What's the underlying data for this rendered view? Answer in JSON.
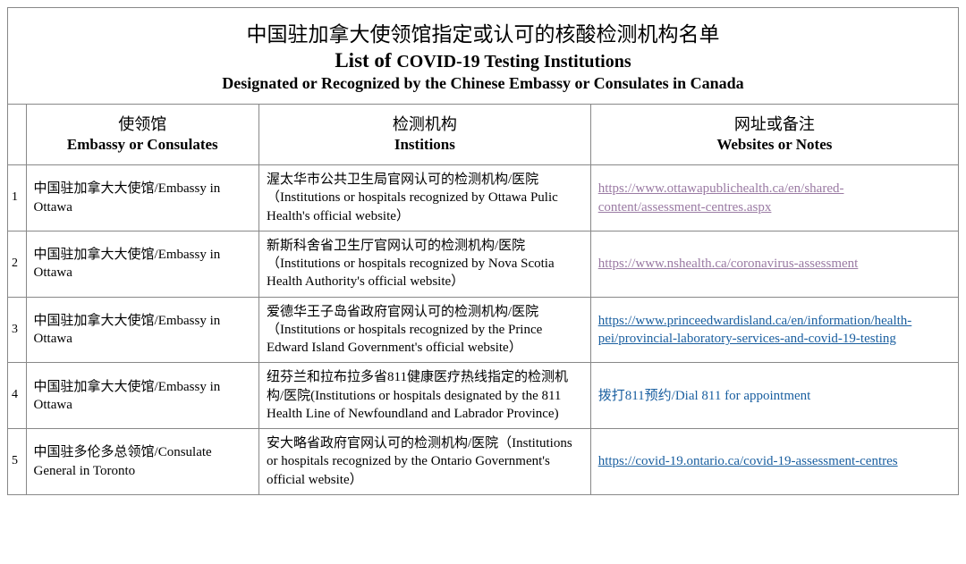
{
  "title": {
    "cn": "中国驻加拿大使领馆指定或认可的核酸检测机构名单",
    "en_line1_prefix": "List of ",
    "en_line1_rest": "COVID-19 Testing Institutions",
    "en_line2": "Designated or Recognized by the Chinese Embassy or Consulates in Canada"
  },
  "headers": {
    "col1_cn": "使领馆",
    "col1_en": "Embassy or Consulates",
    "col2_cn": "检测机构",
    "col2_en": "Institions",
    "col3_cn": "网址或备注",
    "col3_en": "Websites or Notes"
  },
  "rows": [
    {
      "idx": "1",
      "embassy": "中国驻加拿大大使馆/Embassy in Ottawa",
      "institution": "渥太华市公共卫生局官网认可的检测机构/医院（Institutions or hospitals recognized by Ottawa Pulic Health's official website）",
      "note": "https://www.ottawapublichealth.ca/en/shared-content/assessment-centres.aspx",
      "note_style": "visited-link"
    },
    {
      "idx": "2",
      "embassy": "中国驻加拿大大使馆/Embassy in Ottawa",
      "institution": "新斯科舍省卫生厅官网认可的检测机构/医院（Institutions or hospitals recognized by Nova Scotia Health Authority's official website）",
      "note": "https://www.nshealth.ca/coronavirus-assessment",
      "note_style": "visited-link"
    },
    {
      "idx": "3",
      "embassy": "中国驻加拿大大使馆/Embassy in Ottawa",
      "institution": "爱德华王子岛省政府官网认可的检测机构/医院（Institutions or hospitals recognized by the Prince Edward Island Government's official website）",
      "note": "https://www.princeedwardisland.ca/en/information/health-pei/provincial-laboratory-services-and-covid-19-testing",
      "note_style": "link"
    },
    {
      "idx": "4",
      "embassy": "中国驻加拿大大使馆/Embassy in Ottawa",
      "institution": "纽芬兰和拉布拉多省811健康医疗热线指定的检测机构/医院(Institutions or hospitals designated by the 811 Health Line of Newfoundland and Labrador Province)",
      "note": "拨打811预约/Dial 811 for appointment",
      "note_style": "note-plain"
    },
    {
      "idx": "5",
      "embassy": "中国驻多伦多总领馆/Consulate General in Toronto",
      "institution": "安大略省政府官网认可的检测机构/医院（Institutions or hospitals recognized by the Ontario Government's official website）",
      "note": "https://covid-19.ontario.ca/covid-19-assessment-centres",
      "note_style": "link"
    }
  ],
  "colors": {
    "border": "#888888",
    "link": "#1a5fa0",
    "visited": "#9a7aa3",
    "text": "#000000",
    "background": "#ffffff"
  }
}
